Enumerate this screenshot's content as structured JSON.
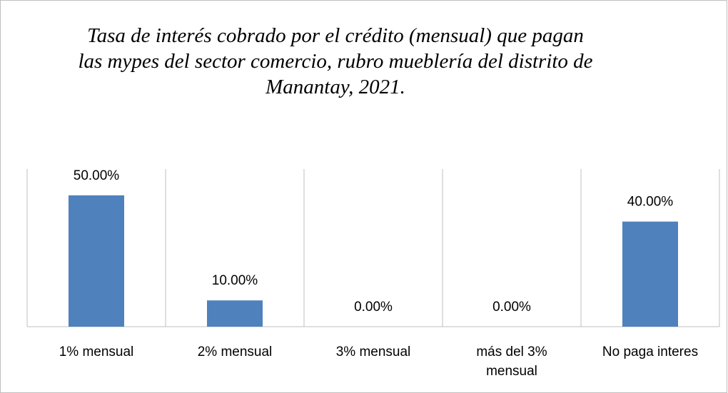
{
  "chart_data": {
    "type": "bar",
    "title": "Tasa de interés cobrado por el crédito (mensual) que pagan\nlas mypes del sector comercio, rubro mueblería del distrito de\nManantay, 2021.",
    "categories": [
      "1% mensual",
      "2% mensual",
      "3% mensual",
      "más del 3% mensual",
      "No paga interes"
    ],
    "values": [
      50,
      10,
      0,
      0,
      40
    ],
    "value_labels": [
      "50.00%",
      "10.00%",
      "0.00%",
      "0.00%",
      "40.00%"
    ],
    "color": "#4f81bd",
    "ylim": [
      0,
      60
    ],
    "grid": true
  }
}
